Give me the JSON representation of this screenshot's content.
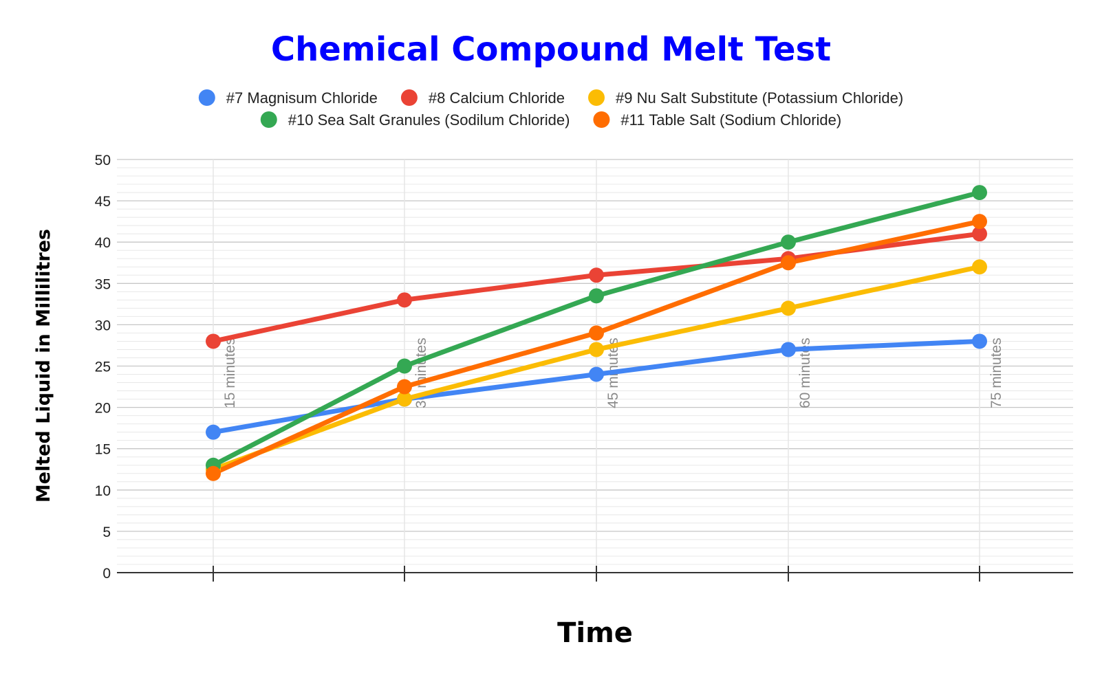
{
  "chart_data": {
    "type": "line",
    "title": "Chemical Compound Melt Test",
    "xlabel": "Time",
    "ylabel": "Melted Liquid in Millilitres",
    "categories": [
      "15 minutes",
      "30 minutes",
      "45 minutes",
      "60 minutes",
      "75 minutes"
    ],
    "ylim": [
      0,
      50
    ],
    "yticks": [
      0,
      5,
      10,
      15,
      20,
      25,
      30,
      35,
      40,
      45,
      50
    ],
    "grid": true,
    "legend_position": "top",
    "series": [
      {
        "name": "#7 Magnisum Chloride",
        "color": "#4285f4",
        "values": [
          17,
          21,
          24,
          27,
          28
        ]
      },
      {
        "name": "#8 Calcium Chloride",
        "color": "#ea4335",
        "values": [
          28,
          33,
          36,
          38,
          41
        ]
      },
      {
        "name": "#9 Nu Salt Substitute (Potassium Chloride)",
        "color": "#fbbc04",
        "values": [
          12.5,
          21,
          27,
          32,
          37
        ]
      },
      {
        "name": "#10 Sea Salt Granules (Sodilum Chloride)",
        "color": "#34a853",
        "values": [
          13,
          25,
          33.5,
          40,
          46
        ]
      },
      {
        "name": "#11 Table Salt (Sodium Chloride)",
        "color": "#ff6d01",
        "values": [
          12,
          22.5,
          29,
          37.5,
          42.5
        ]
      }
    ],
    "title_color": "#0000ff"
  }
}
